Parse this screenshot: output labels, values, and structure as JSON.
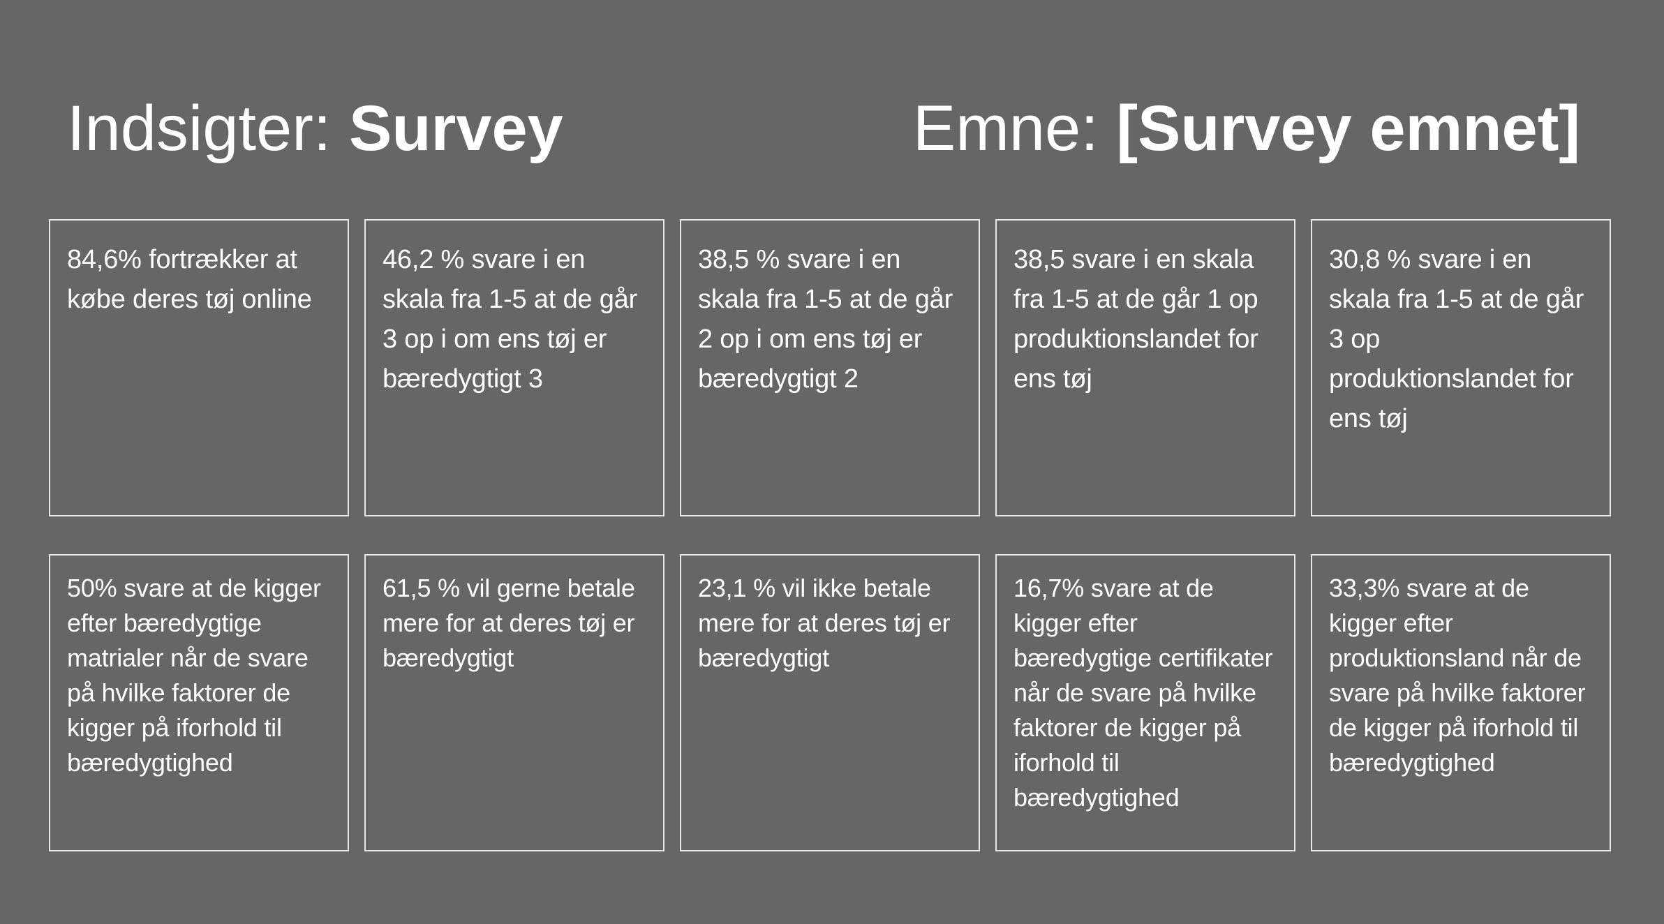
{
  "header": {
    "left_prefix": "Indsigter: ",
    "left_bold": "Survey",
    "right_prefix": "Emne: ",
    "right_bold": "[Survey emnet]"
  },
  "cards": [
    "84,6% fortrækker at købe deres tøj online",
    "46,2 % svare i en skala fra 1-5 at de går 3 op i om ens tøj er bæredygtigt 3",
    "38,5 % svare i en skala fra 1-5 at de går 2 op i om ens tøj er bæredygtigt 2",
    "38,5 svare i en skala fra 1-5 at de går 1 op produktionslandet for ens tøj",
    "30,8 % svare i en skala fra 1-5 at de går 3 op produktionslandet for ens tøj",
    "50% svare at de kigger efter bæredygtige matrialer når de svare på hvilke faktorer de kigger på iforhold til bæredygtighed",
    "61,5 % vil gerne betale mere for at deres tøj er bæredygtigt",
    "23,1 % vil ikke betale mere for at deres tøj er bæredygtigt",
    "16,7% svare at de kigger efter bæredygtige certifikater når de svare på hvilke faktorer de kigger på iforhold til bæredygtighed",
    "33,3% svare at de kigger efter produktionsland når de svare på hvilke faktorer de kigger på iforhold til bæredygtighed"
  ]
}
